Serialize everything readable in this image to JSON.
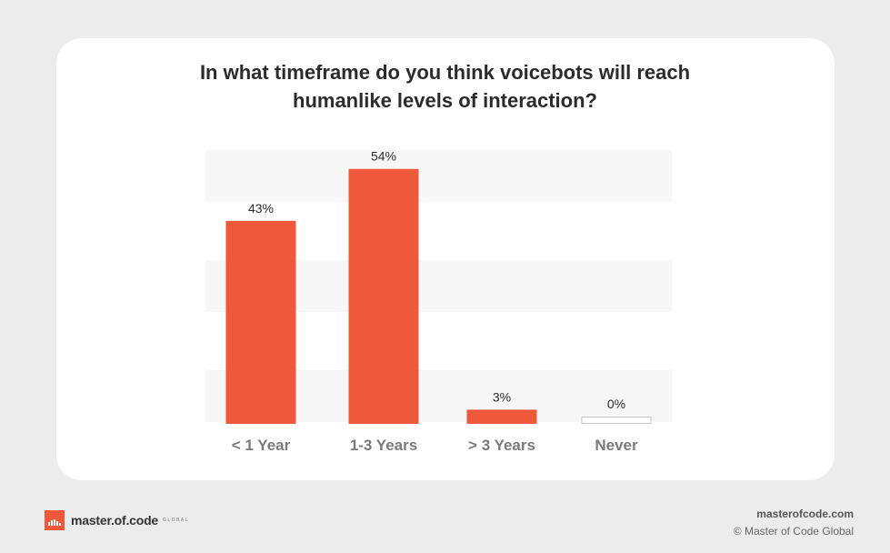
{
  "chart_data": {
    "type": "bar",
    "title_lines": [
      "In what timeframe do you think voicebots will reach",
      "humanlike levels of interaction?"
    ],
    "categories": [
      "< 1 Year",
      "1-3 Years",
      "> 3 Years",
      "Never"
    ],
    "values": [
      43,
      54,
      3,
      0
    ],
    "value_labels": [
      "43%",
      "54%",
      "3%",
      "0%"
    ],
    "unit": "%",
    "ylim": [
      0,
      58
    ],
    "grid": "alternating horizontal bands",
    "legend": "none"
  },
  "colors": {
    "bar": "#f0583c",
    "band": "#f7f7f7",
    "zero_bar_stroke": "#c8c8c8",
    "card": "#ffffff",
    "page": "#ececec",
    "text": "#2b2b2b",
    "tick_text": "#7a7a7a"
  },
  "footer": {
    "brand": "master.of.code",
    "brand_suffix": "GLOBAL",
    "website": "masterofcode.com",
    "copyright": "© Master of Code Global"
  },
  "icons": {
    "logo": "master-of-code-logo-icon"
  }
}
